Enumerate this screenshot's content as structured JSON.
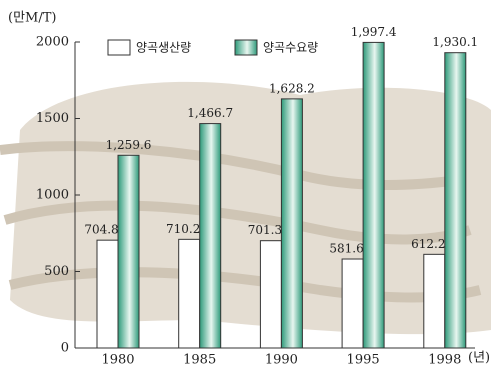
{
  "chart_data": {
    "type": "bar",
    "y_label": "(만M/T)",
    "x_label": "(년)",
    "categories": [
      "1980",
      "1985",
      "1990",
      "1995",
      "1998"
    ],
    "series": [
      {
        "name": "양곡생산량",
        "color": "#ffffff",
        "values": [
          704.8,
          710.2,
          701.3,
          581.6,
          612.2
        ],
        "value_labels": [
          "704.8",
          "710.2",
          "701.3",
          "581.6",
          "612.2"
        ]
      },
      {
        "name": "양곡수요량",
        "color": "#2e9a7a",
        "values": [
          1259.6,
          1466.7,
          1628.2,
          1997.4,
          1930.1
        ],
        "value_labels": [
          "1,259.6",
          "1,466.7",
          "1,628.2",
          "1,997.4",
          "1,930.1"
        ]
      }
    ],
    "ylim": [
      0,
      2000
    ],
    "yticks": [
      0,
      500,
      1000,
      1500,
      2000
    ],
    "grid": false
  }
}
